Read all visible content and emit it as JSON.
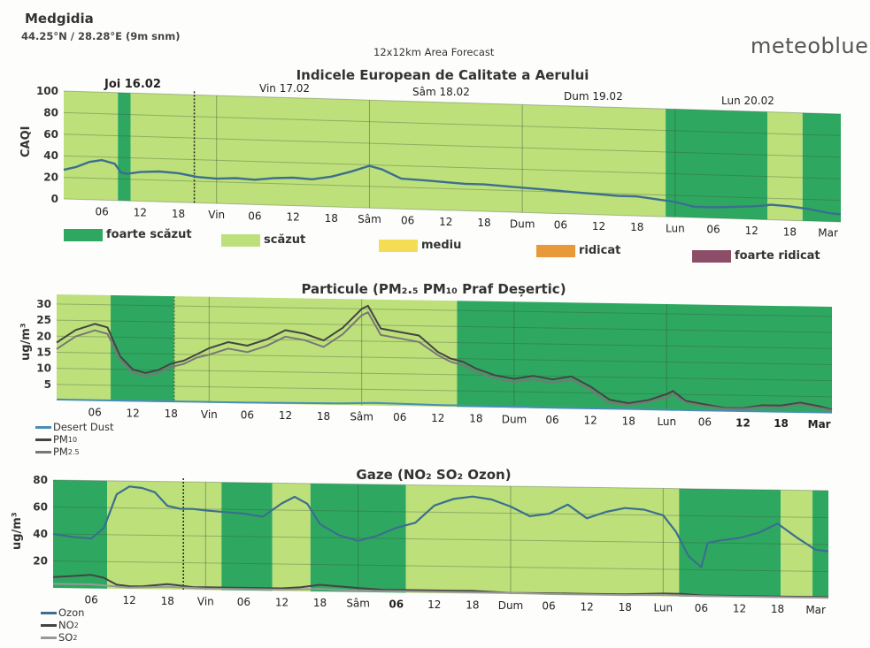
{
  "header": {
    "location": "Medgidia",
    "coords": "44.25°N / 28.28°E (9m snm)",
    "area": "12x12km Area Forecast",
    "brand": "meteoblue"
  },
  "colors": {
    "dark_green": "#2ea860",
    "light_green": "#bde07a",
    "yellow": "#f5dc55",
    "orange": "#e89a3a",
    "purple": "#8c4d68",
    "ozone": "#3b6f8e",
    "pm10": "#444444",
    "pm25": "#777777",
    "no2": "#444444",
    "so2": "#999999",
    "desert_dust": "#4a8db5"
  },
  "chart_data": [
    {
      "type": "line",
      "title": "Indicele European de Calitate a Aerului",
      "ylabel": "CAQI",
      "ylim": [
        0,
        100
      ],
      "yticks": [
        0,
        20,
        40,
        60,
        80,
        100
      ],
      "day_labels": [
        "Joi 16.02",
        "Vin 17.02",
        "Sâm 18.02",
        "Dum 19.02",
        "Lun 20.02"
      ],
      "x_tick_labels": [
        "06",
        "12",
        "18",
        "Vin",
        "06",
        "12",
        "18",
        "Sâm",
        "06",
        "12",
        "18",
        "Dum",
        "06",
        "12",
        "18",
        "Lun",
        "06",
        "12",
        "18",
        "Mar"
      ],
      "x_ticks_hours": [
        6,
        12,
        18,
        24,
        30,
        36,
        42,
        48,
        54,
        60,
        66,
        72,
        78,
        84,
        90,
        96,
        102,
        108,
        114,
        120
      ],
      "x_range_hours": [
        0,
        122
      ],
      "bands": [
        {
          "from": 0,
          "to": 8.5,
          "level": "scazut"
        },
        {
          "from": 8.5,
          "to": 10.5,
          "level": "foarte_scazut"
        },
        {
          "from": 10.5,
          "to": 94.5,
          "level": "scazut"
        },
        {
          "from": 94.5,
          "to": 110.5,
          "level": "foarte_scazut"
        },
        {
          "from": 110.5,
          "to": 116,
          "level": "scazut"
        },
        {
          "from": 116,
          "to": 122,
          "level": "foarte_scazut"
        }
      ],
      "series": [
        {
          "x": [
            0,
            2,
            4,
            6,
            8,
            9,
            10,
            12,
            15,
            18,
            21,
            24,
            27,
            30,
            33,
            36,
            39,
            42,
            45,
            48,
            50,
            53,
            57,
            60,
            63,
            66,
            69,
            72,
            75,
            78,
            81,
            84,
            87,
            90,
            93,
            96,
            99,
            102,
            105,
            108,
            110,
            111,
            114,
            117,
            120,
            122
          ],
          "values": [
            27,
            30,
            35,
            37,
            34,
            26,
            25,
            27,
            28,
            27,
            24,
            23,
            24,
            23,
            25,
            26,
            25,
            28,
            33,
            39,
            36,
            28,
            27,
            26,
            25,
            25,
            24,
            23,
            22,
            21,
            20,
            19,
            18,
            18,
            16,
            14,
            10,
            10,
            11,
            12,
            13,
            14,
            13,
            11,
            8,
            7
          ]
        }
      ],
      "legend": [
        {
          "key": "foarte_scazut",
          "label": "foarte scăzut"
        },
        {
          "key": "scazut",
          "label": "scăzut"
        },
        {
          "key": "mediu",
          "label": "mediu"
        },
        {
          "key": "ridicat",
          "label": "ridicat"
        },
        {
          "key": "foarte_ridicat",
          "label": "foarte ridicat"
        }
      ]
    },
    {
      "type": "line",
      "title": "Particule (PM₂.₅ PM₁₀ Praf Deșertic)",
      "ylabel": "ug/m³",
      "ylim": [
        0,
        33
      ],
      "yticks": [
        5,
        10,
        15,
        20,
        25,
        30
      ],
      "x_tick_labels": [
        "06",
        "12",
        "18",
        "Vin",
        "06",
        "12",
        "18",
        "Sâm",
        "06",
        "12",
        "18",
        "Dum",
        "06",
        "12",
        "18",
        "Lun",
        "06",
        "12",
        "18",
        "Mar"
      ],
      "x_ticks_hours": [
        6,
        12,
        18,
        24,
        30,
        36,
        42,
        48,
        54,
        60,
        66,
        72,
        78,
        84,
        90,
        96,
        102,
        108,
        114,
        120
      ],
      "x_range_hours": [
        0,
        122
      ],
      "bands": [
        {
          "from": 0,
          "to": 8.5,
          "level": "scazut"
        },
        {
          "from": 8.5,
          "to": 18.5,
          "level": "foarte_scazut"
        },
        {
          "from": 18.5,
          "to": 63,
          "level": "scazut"
        },
        {
          "from": 63,
          "to": 122,
          "level": "foarte_scazut"
        }
      ],
      "series": [
        {
          "name": "Desert Dust",
          "x": [
            0,
            30,
            45,
            50,
            60,
            70,
            80,
            90,
            100,
            110,
            122
          ],
          "values": [
            0.3,
            0.3,
            0.5,
            0.8,
            0.5,
            0.3,
            0.2,
            0.2,
            0.1,
            0.1,
            0.1
          ]
        },
        {
          "name": "PM10",
          "x": [
            0,
            3,
            6,
            8,
            10,
            12,
            14,
            16,
            18,
            20,
            22,
            24,
            27,
            30,
            33,
            36,
            39,
            42,
            45,
            48,
            49,
            51,
            54,
            57,
            60,
            62,
            64,
            66,
            69,
            72,
            75,
            78,
            81,
            84,
            87,
            90,
            93,
            96,
            97,
            99,
            102,
            105,
            108,
            111,
            114,
            117,
            120,
            122
          ],
          "values": [
            18,
            22,
            24,
            23,
            14,
            10,
            9,
            10,
            12,
            13,
            15,
            17,
            19,
            18,
            20,
            23,
            22,
            20,
            24,
            30,
            31,
            24,
            23,
            22,
            17,
            15,
            14,
            12,
            10,
            9,
            10,
            9,
            10,
            7,
            3,
            2,
            3,
            5,
            6,
            3,
            2,
            1,
            1,
            2,
            2,
            3,
            2,
            1
          ]
        },
        {
          "name": "PM2.5",
          "x": [
            0,
            3,
            6,
            8,
            10,
            12,
            14,
            16,
            18,
            20,
            22,
            24,
            27,
            30,
            33,
            36,
            39,
            42,
            45,
            48,
            49,
            51,
            54,
            57,
            60,
            62,
            64,
            66,
            69,
            72,
            75,
            78,
            81,
            84,
            87,
            90,
            93,
            96,
            97,
            99,
            102,
            105,
            108,
            111,
            114,
            117,
            120,
            122
          ],
          "values": [
            16,
            20,
            22,
            21,
            13,
            9,
            8,
            9,
            11,
            12,
            14,
            15,
            17,
            16,
            18,
            21,
            20,
            18,
            22,
            28,
            29,
            22,
            21,
            20,
            16,
            14,
            13,
            11,
            9,
            8,
            9,
            8,
            9,
            6,
            2,
            1.5,
            2.5,
            4,
            5,
            2.5,
            1.5,
            0.8,
            0.8,
            1.5,
            1.5,
            2.5,
            1.5,
            0.8
          ]
        }
      ],
      "legend": [
        "Desert Dust",
        "PM10",
        "PM2.5"
      ]
    },
    {
      "type": "line",
      "title": "Gaze (NO₂ SO₂ Ozon)",
      "ylabel": "ug/m³",
      "ylim": [
        0,
        80
      ],
      "yticks": [
        20,
        40,
        60,
        80
      ],
      "x_tick_labels": [
        "06",
        "12",
        "18",
        "Vin",
        "06",
        "12",
        "18",
        "Sâm",
        "06",
        "12",
        "18",
        "Dum",
        "06",
        "12",
        "18",
        "Lun",
        "06",
        "12",
        "18",
        "Mar"
      ],
      "x_ticks_hours": [
        6,
        12,
        18,
        24,
        30,
        36,
        42,
        48,
        54,
        60,
        66,
        72,
        78,
        84,
        90,
        96,
        102,
        108,
        114,
        120
      ],
      "x_range_hours": [
        0,
        122
      ],
      "bands": [
        {
          "from": 0,
          "to": 8.5,
          "level": "foarte_scazut"
        },
        {
          "from": 8.5,
          "to": 26.5,
          "level": "scazut"
        },
        {
          "from": 26.5,
          "to": 34.5,
          "level": "foarte_scazut"
        },
        {
          "from": 34.5,
          "to": 40.5,
          "level": "scazut"
        },
        {
          "from": 40.5,
          "to": 55.5,
          "level": "foarte_scazut"
        },
        {
          "from": 55.5,
          "to": 98.5,
          "level": "scazut"
        },
        {
          "from": 98.5,
          "to": 114.5,
          "level": "foarte_scazut"
        },
        {
          "from": 114.5,
          "to": 119.5,
          "level": "scazut"
        },
        {
          "from": 119.5,
          "to": 122,
          "level": "foarte_scazut"
        }
      ],
      "series": [
        {
          "name": "Ozon",
          "x": [
            0,
            3,
            6,
            8,
            10,
            12,
            14,
            16,
            18,
            20,
            22,
            24,
            27,
            30,
            33,
            36,
            38,
            40,
            42,
            45,
            48,
            51,
            54,
            57,
            60,
            63,
            66,
            69,
            72,
            75,
            78,
            81,
            84,
            87,
            90,
            93,
            96,
            98,
            100,
            102,
            103,
            105,
            108,
            111,
            114,
            117,
            120,
            122
          ],
          "values": [
            40,
            38,
            37,
            45,
            70,
            76,
            75,
            72,
            62,
            60,
            60,
            59,
            58,
            57,
            55,
            65,
            70,
            65,
            50,
            42,
            38,
            42,
            48,
            52,
            65,
            70,
            72,
            70,
            65,
            58,
            60,
            67,
            57,
            62,
            65,
            64,
            60,
            48,
            30,
            22,
            40,
            42,
            44,
            48,
            55,
            45,
            36,
            35
          ]
        },
        {
          "name": "NO2",
          "x": [
            0,
            3,
            6,
            8,
            10,
            12,
            14,
            16,
            18,
            20,
            22,
            24,
            27,
            30,
            33,
            36,
            39,
            42,
            45,
            48,
            52,
            56,
            60,
            66,
            72,
            78,
            84,
            90,
            96,
            99,
            102,
            108,
            114,
            120,
            122
          ],
          "values": [
            8,
            9,
            10,
            8,
            3,
            2,
            2,
            3,
            4,
            3,
            2,
            2,
            2,
            2,
            2,
            2,
            3,
            5,
            4,
            3,
            2,
            2,
            2,
            2,
            1,
            1,
            1,
            1,
            2,
            2,
            1,
            1,
            1,
            1,
            1
          ]
        },
        {
          "name": "SO2",
          "x": [
            0,
            6,
            12,
            18,
            24,
            30,
            36,
            42,
            48,
            54,
            60,
            66,
            72,
            78,
            84,
            90,
            96,
            102,
            108,
            114,
            120,
            122
          ],
          "values": [
            3,
            3,
            1,
            2,
            1,
            1,
            1,
            2,
            1,
            1,
            1,
            1,
            1,
            0.5,
            0.5,
            0.5,
            1,
            0.5,
            0.5,
            0.5,
            0.5,
            0.5
          ]
        }
      ],
      "legend": [
        "Ozon",
        "NO2",
        "SO2"
      ]
    }
  ],
  "texts": {
    "legend_pm10": "PM",
    "legend_pm10_sub": "10",
    "legend_pm25": "PM",
    "legend_pm25_sub": "2.5",
    "legend_no2": "NO",
    "legend_no2_sub": "2",
    "legend_so2": "SO",
    "legend_so2_sub": "2"
  }
}
